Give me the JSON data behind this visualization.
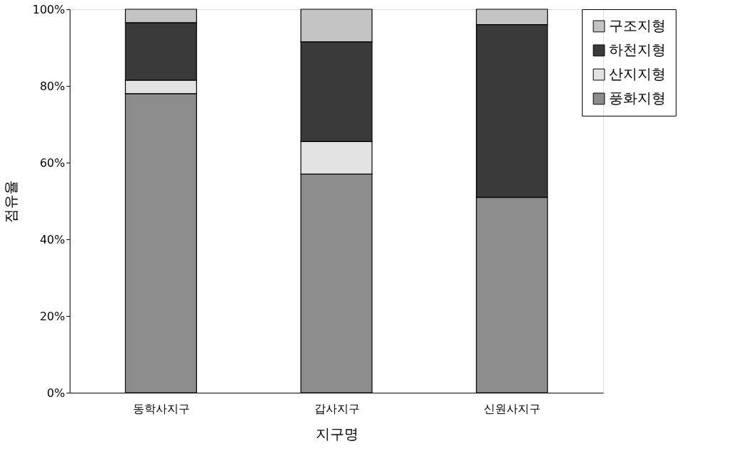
{
  "chart_data": {
    "type": "bar",
    "stacked": true,
    "xlabel": "지구명",
    "ylabel": "점유율",
    "categories": [
      "동학사지구",
      "갑사지구",
      "신원사지구"
    ],
    "series": [
      {
        "name": "풍화지형",
        "color": "#8c8c8c",
        "values": [
          78,
          57,
          51
        ]
      },
      {
        "name": "산지지형",
        "color": "#e3e3e3",
        "values": [
          3.5,
          8.5,
          0
        ]
      },
      {
        "name": "하천지형",
        "color": "#3a3a3a",
        "values": [
          15,
          26,
          45
        ]
      },
      {
        "name": "구조지형",
        "color": "#c4c4c4",
        "values": [
          3.5,
          8.5,
          4
        ]
      }
    ],
    "ylim": [
      0,
      100
    ],
    "yticks": [
      {
        "value": 0,
        "label": "0%"
      },
      {
        "value": 20,
        "label": "20%"
      },
      {
        "value": 40,
        "label": "40%"
      },
      {
        "value": 60,
        "label": "60%"
      },
      {
        "value": 80,
        "label": "80%"
      },
      {
        "value": 100,
        "label": "100%"
      }
    ],
    "grid": false,
    "legend": "right"
  }
}
